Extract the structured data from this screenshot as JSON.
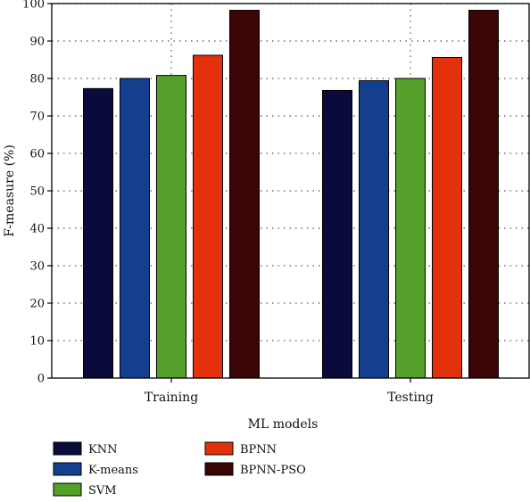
{
  "chart_data": {
    "type": "bar",
    "title": "",
    "xlabel": "ML models",
    "ylabel": "F-measure (%)",
    "ylim": [
      0,
      100
    ],
    "yticks": [
      0,
      10,
      20,
      30,
      40,
      50,
      60,
      70,
      80,
      90,
      100
    ],
    "categories": [
      "Training",
      "Testing"
    ],
    "series": [
      {
        "name": "KNN",
        "color": "#0b0b3b",
        "values": [
          77.3,
          76.8
        ]
      },
      {
        "name": "K-means",
        "color": "#143f8f",
        "values": [
          80.0,
          79.4
        ]
      },
      {
        "name": "SVM",
        "color": "#55a02a",
        "values": [
          80.8,
          80.0
        ]
      },
      {
        "name": "BPNN",
        "color": "#e3300d",
        "values": [
          86.2,
          85.6
        ]
      },
      {
        "name": "BPNN-PSO",
        "color": "#3a0505",
        "values": [
          98.2,
          98.2
        ]
      }
    ],
    "grid": "dotted-horizontal",
    "legend_position": "bottom-left"
  }
}
